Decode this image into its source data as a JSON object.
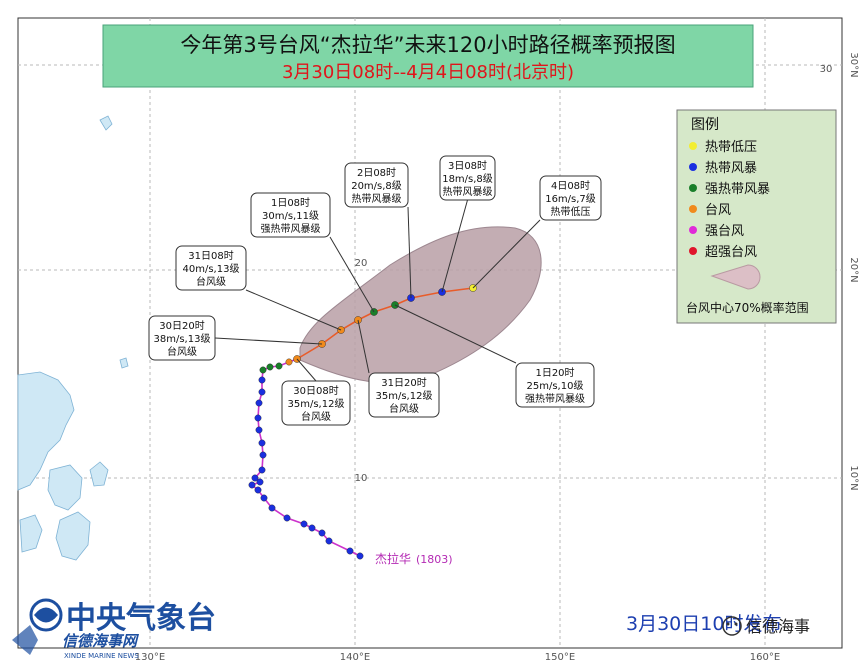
{
  "title": {
    "line1": "今年第3号台风“杰拉华”未来120小时路径概率预报图",
    "line2": "3月30日08时--4月4日08时(北京时)"
  },
  "grid": {
    "lon_labels": [
      "130°E",
      "140°E",
      "150°E",
      "160°E"
    ],
    "lat_labels_right": [
      "30°N",
      "20°N",
      "10°N"
    ],
    "lat_labels_inner": [
      "30",
      "20",
      "10"
    ]
  },
  "legend": {
    "title": "图例",
    "items": [
      {
        "label": "热带低压",
        "color": "#f2ee30"
      },
      {
        "label": "热带风暴",
        "color": "#1a2fe0"
      },
      {
        "label": "强热带风暴",
        "color": "#1a7f2a"
      },
      {
        "label": "台风",
        "color": "#f08a1c"
      },
      {
        "label": "强台风",
        "color": "#e02bd8"
      },
      {
        "label": "超强台风",
        "color": "#e0152b"
      }
    ],
    "prob_label": "台风中心70%概率范围"
  },
  "typhoon": {
    "name_label": "杰拉华",
    "number_label": "(1803)",
    "track_color": "#cc33cc",
    "forecast_color": "#e85c2a"
  },
  "annotations": [
    {
      "lines": [
        "4日08时",
        "16m/s,7级",
        "热带低压"
      ]
    },
    {
      "lines": [
        "3日08时",
        "18m/s,8级",
        "热带风暴级"
      ]
    },
    {
      "lines": [
        "2日08时",
        "20m/s,8级",
        "热带风暴级"
      ]
    },
    {
      "lines": [
        "1日08时",
        "30m/s,11级",
        "强热带风暴级"
      ]
    },
    {
      "lines": [
        "31日08时",
        "40m/s,13级",
        "台风级"
      ]
    },
    {
      "lines": [
        "30日20时",
        "38m/s,13级",
        "台风级"
      ]
    },
    {
      "lines": [
        "30日08时",
        "35m/s,12级",
        "台风级"
      ]
    },
    {
      "lines": [
        "31日20时",
        "35m/s,12级",
        "台风级"
      ]
    },
    {
      "lines": [
        "1日20时",
        "25m/s,10级",
        "强热带风暴级"
      ]
    }
  ],
  "footer": {
    "agency": "中央气象台",
    "issue_time": "3月30日10时发布",
    "watermark_cn": "信德海事网",
    "watermark_en": "XINDE MARINE NEWS",
    "wechat": "信德海事"
  }
}
